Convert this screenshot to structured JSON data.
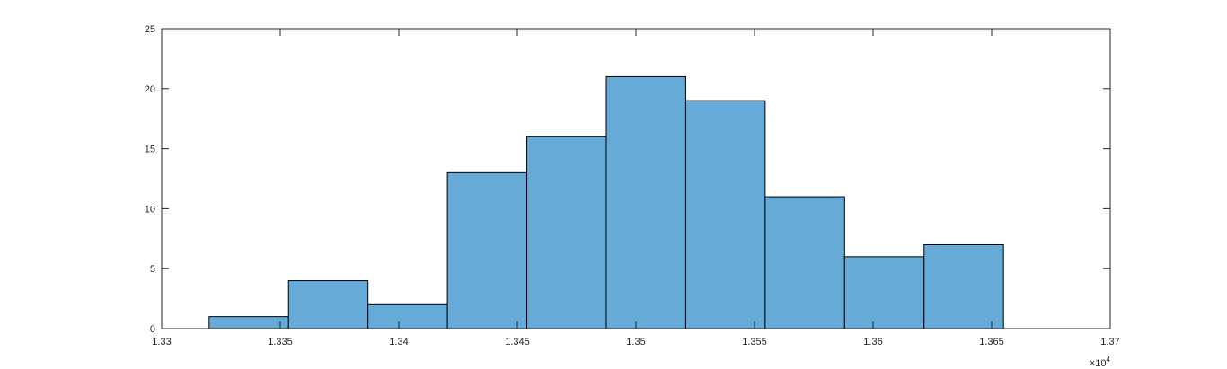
{
  "chart_data": {
    "type": "bar",
    "subtype": "histogram",
    "bin_edges": [
      13320,
      13353.5,
      13387,
      13420.5,
      13454,
      13487.5,
      13521,
      13554.5,
      13588,
      13621.5,
      13655
    ],
    "values": [
      1,
      4,
      2,
      13,
      16,
      21,
      19,
      11,
      6,
      7
    ],
    "xlim": [
      1.33,
      1.37
    ],
    "ylim": [
      0,
      25
    ],
    "x_ticks": [
      1.33,
      1.335,
      1.34,
      1.345,
      1.35,
      1.355,
      1.36,
      1.365,
      1.37
    ],
    "y_ticks": [
      0,
      5,
      10,
      15,
      20,
      25
    ],
    "x_tick_labels": [
      "1.33",
      "1.335",
      "1.34",
      "1.345",
      "1.35",
      "1.355",
      "1.36",
      "1.365",
      "1.37"
    ],
    "y_tick_labels": [
      "0",
      "5",
      "10",
      "15",
      "20",
      "25"
    ],
    "x_exponent_base": "×10",
    "x_exponent_power": "4",
    "x_multiplier": 10000,
    "title": "",
    "xlabel": "",
    "ylabel": "",
    "grid": false,
    "legend": "none",
    "colors": {
      "bar_fill": "#66aad8",
      "bar_edge": "#000000",
      "axis": "#262626"
    }
  }
}
